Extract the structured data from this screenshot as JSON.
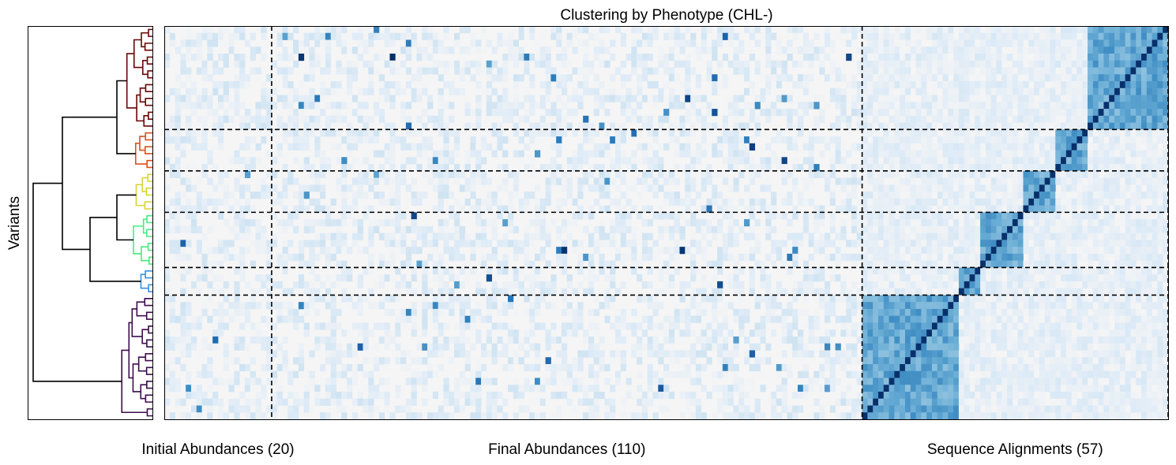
{
  "chart_data": {
    "type": "heatmap",
    "title": "Clustering by Phenotype (CHL-)",
    "ylabel": "Variants",
    "column_groups": [
      {
        "label": "Initial Abundances (20)",
        "count": 20
      },
      {
        "label": "Final Abundances (110)",
        "count": 110
      },
      {
        "label": "Sequence Alignments (57)",
        "count": 57
      }
    ],
    "row_count": 57,
    "row_clusters": [
      {
        "rows": 15,
        "color": "#6b0606"
      },
      {
        "rows": 6,
        "color": "#d9511c"
      },
      {
        "rows": 6,
        "color": "#d8d43a"
      },
      {
        "rows": 8,
        "color": "#46ec7c"
      },
      {
        "rows": 4,
        "color": "#3394e8"
      },
      {
        "rows": 18,
        "color": "#3d0d4f"
      }
    ],
    "colormap": "Blues",
    "value_range": [
      0,
      1
    ],
    "grid": false,
    "dendrogram": {
      "orientation": "left",
      "link_color": "#000000"
    }
  }
}
